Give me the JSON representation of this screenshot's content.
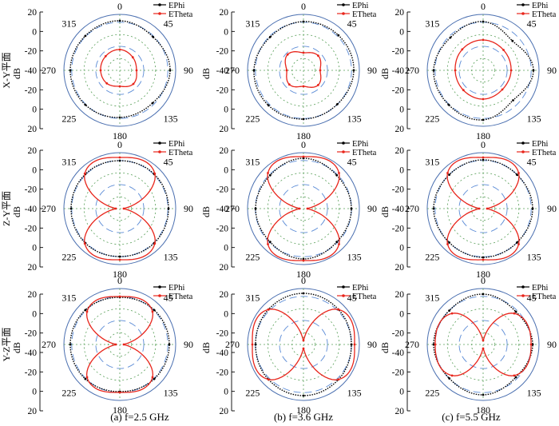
{
  "figure": {
    "captions": [
      "(a) f=2.5 GHz",
      "(b) f=3.6 GHz",
      "(c) f=5.5 GHz"
    ],
    "row_labels": [
      "X-Y平面",
      "Z-Y平面",
      "Y-Z平面"
    ]
  },
  "chart_data": [
    {
      "id": "xy-2.5",
      "type": "line",
      "polar": true,
      "plane": "X-Y平面",
      "frequency": "2.5 GHz",
      "angle_labels": [
        "0",
        "45",
        "90",
        "135",
        "180",
        "225",
        "270",
        "315"
      ],
      "r_ticks": [
        "20",
        "0",
        "-20",
        "-40",
        "-20",
        "0",
        "20"
      ],
      "rlim": [
        -50,
        20
      ],
      "ylabel": "dB",
      "legend": [
        "EPhi",
        "ETheta"
      ],
      "colors": {
        "EPhi": "#000000",
        "ETheta": "#e8251b"
      },
      "series": [
        {
          "name": "EPhi",
          "angle_deg": [
            0,
            45,
            90,
            135,
            180,
            225,
            270,
            315
          ],
          "values_db": [
            12,
            9,
            13,
            8,
            9,
            11,
            12,
            11
          ]
        },
        {
          "name": "ETheta",
          "angle_deg": [
            0,
            45,
            90,
            135,
            180,
            225,
            270,
            315
          ],
          "values_db": [
            -24,
            -27,
            -29,
            -26,
            -30,
            -27,
            -26,
            -25
          ]
        }
      ]
    },
    {
      "id": "xy-3.6",
      "type": "line",
      "polar": true,
      "plane": "X-Y平面",
      "frequency": "3.6 GHz",
      "angle_labels": [
        "0",
        "45",
        "90",
        "135",
        "180",
        "225",
        "270",
        "315"
      ],
      "r_ticks": [
        "20",
        "0",
        "-20",
        "-40",
        "-20",
        "0",
        "20"
      ],
      "rlim": [
        -50,
        20
      ],
      "ylabel": "dB",
      "legend": [
        "EPhi",
        "ETheta"
      ],
      "colors": {
        "EPhi": "#000000",
        "ETheta": "#e8251b"
      },
      "series": [
        {
          "name": "EPhi",
          "angle_deg": [
            0,
            45,
            90,
            135,
            180,
            225,
            270,
            315
          ],
          "values_db": [
            11,
            12,
            13,
            10,
            11,
            12,
            12,
            9
          ]
        },
        {
          "name": "ETheta",
          "angle_deg": [
            0,
            45,
            90,
            135,
            180,
            225,
            270,
            315
          ],
          "values_db": [
            -28,
            -24,
            -29,
            -24,
            -30,
            -25,
            -29,
            -22
          ]
        }
      ]
    },
    {
      "id": "xy-5.5",
      "type": "line",
      "polar": true,
      "plane": "X-Y平面",
      "frequency": "5.5 GHz",
      "angle_labels": [
        "0",
        "45",
        "90",
        "135",
        "180",
        "225",
        "270",
        "315"
      ],
      "r_ticks": [
        "20",
        "0",
        "-20",
        "-40",
        "-20",
        "0",
        "20"
      ],
      "rlim": [
        -50,
        20
      ],
      "ylabel": "dB",
      "legend": [
        "EPhi",
        "ETheta"
      ],
      "colors": {
        "EPhi": "#000000",
        "ETheta": "#e8251b"
      },
      "series": [
        {
          "name": "EPhi",
          "angle_deg": [
            0,
            45,
            90,
            135,
            180,
            225,
            270,
            315
          ],
          "values_db": [
            11,
            2,
            13,
            3,
            12,
            11,
            12,
            8
          ]
        },
        {
          "name": "ETheta",
          "angle_deg": [
            0,
            45,
            90,
            135,
            180,
            225,
            270,
            315
          ],
          "values_db": [
            -12,
            -14,
            -15,
            -16,
            -14,
            -15,
            -15,
            -13
          ]
        }
      ]
    },
    {
      "id": "zy-2.5",
      "type": "line",
      "polar": true,
      "plane": "Z-Y平面",
      "frequency": "2.5 GHz",
      "angle_labels": [
        "0",
        "45",
        "90",
        "135",
        "180",
        "225",
        "270",
        "315"
      ],
      "r_ticks": [
        "20",
        "0",
        "-20",
        "-40",
        "-20",
        "0",
        "20"
      ],
      "rlim": [
        -50,
        20
      ],
      "ylabel": "dB",
      "legend": [
        "EPhi",
        "ETheta"
      ],
      "colors": {
        "EPhi": "#000000",
        "ETheta": "#e8251b"
      },
      "series": [
        {
          "name": "EPhi",
          "angle_deg": [
            0,
            45,
            90,
            135,
            180,
            225,
            270,
            315
          ],
          "values_db": [
            10,
            11,
            11,
            11,
            10,
            11,
            11,
            11
          ]
        },
        {
          "name": "ETheta",
          "angle_deg": [
            0,
            45,
            90,
            135,
            180,
            225,
            270,
            315
          ],
          "values_db": [
            14,
            12,
            -45,
            12,
            14,
            12,
            -45,
            12
          ]
        }
      ]
    },
    {
      "id": "zy-3.6",
      "type": "line",
      "polar": true,
      "plane": "Z-Y平面",
      "frequency": "3.6 GHz",
      "angle_labels": [
        "0",
        "45",
        "90",
        "135",
        "180",
        "225",
        "270",
        "315"
      ],
      "r_ticks": [
        "20",
        "0",
        "-20",
        "-40",
        "-20",
        "0",
        "20"
      ],
      "rlim": [
        -50,
        20
      ],
      "ylabel": "dB",
      "legend": [
        "EPhi",
        "ETheta"
      ],
      "colors": {
        "EPhi": "#000000",
        "ETheta": "#e8251b"
      },
      "series": [
        {
          "name": "EPhi",
          "angle_deg": [
            0,
            45,
            90,
            135,
            180,
            225,
            270,
            315
          ],
          "values_db": [
            13,
            9,
            10,
            9,
            13,
            9,
            10,
            9
          ]
        },
        {
          "name": "ETheta",
          "angle_deg": [
            0,
            45,
            90,
            135,
            180,
            225,
            270,
            315
          ],
          "values_db": [
            15,
            13,
            -45,
            13,
            15,
            13,
            -45,
            13
          ]
        }
      ]
    },
    {
      "id": "zy-5.5",
      "type": "line",
      "polar": true,
      "plane": "Z-Y平面",
      "frequency": "5.5 GHz",
      "angle_labels": [
        "0",
        "45",
        "90",
        "135",
        "180",
        "225",
        "270",
        "315"
      ],
      "r_ticks": [
        "20",
        "0",
        "-20",
        "-40",
        "-20",
        "0",
        "20"
      ],
      "rlim": [
        -50,
        20
      ],
      "ylabel": "dB",
      "legend": [
        "EPhi",
        "ETheta"
      ],
      "colors": {
        "EPhi": "#000000",
        "ETheta": "#e8251b"
      },
      "series": [
        {
          "name": "EPhi",
          "angle_deg": [
            0,
            45,
            90,
            135,
            180,
            225,
            270,
            315
          ],
          "values_db": [
            11,
            10,
            12,
            10,
            11,
            10,
            12,
            10
          ]
        },
        {
          "name": "ETheta",
          "angle_deg": [
            0,
            45,
            90,
            135,
            180,
            225,
            270,
            315
          ],
          "values_db": [
            14,
            13,
            -45,
            13,
            14,
            13,
            -45,
            13
          ]
        }
      ]
    },
    {
      "id": "yz-2.5",
      "type": "line",
      "polar": true,
      "plane": "Y-Z平面",
      "frequency": "2.5 GHz",
      "angle_labels": [
        "0",
        "45",
        "90",
        "135",
        "180",
        "225",
        "270",
        "315"
      ],
      "r_ticks": [
        "20",
        "0",
        "-20",
        "-40",
        "-20",
        "0",
        "20"
      ],
      "rlim": [
        -50,
        20
      ],
      "ylabel": "dB",
      "legend": [
        "EPhi",
        "ETheta"
      ],
      "colors": {
        "EPhi": "#000000",
        "ETheta": "#e8251b"
      },
      "series": [
        {
          "name": "EPhi",
          "angle_deg": [
            0,
            45,
            90,
            135,
            180,
            225,
            270,
            315
          ],
          "values_db": [
            9,
            11,
            12,
            11,
            9,
            11,
            12,
            11
          ]
        },
        {
          "name": "ETheta",
          "angle_deg": [
            0,
            45,
            90,
            135,
            180,
            225,
            270,
            315
          ],
          "values_db": [
            10,
            8,
            -45,
            8,
            10,
            8,
            -45,
            8
          ]
        }
      ]
    },
    {
      "id": "yz-3.6",
      "type": "line",
      "polar": true,
      "plane": "Y-Z平面",
      "frequency": "3.6 GHz",
      "angle_labels": [
        "0",
        "45",
        "90",
        "135",
        "180",
        "225",
        "270",
        "315"
      ],
      "r_ticks": [
        "20",
        "0",
        "-20",
        "-40",
        "-20",
        "0",
        "20"
      ],
      "rlim": [
        -50,
        20
      ],
      "ylabel": "dB",
      "legend": [
        "EPhi",
        "ETheta"
      ],
      "colors": {
        "EPhi": "#000000",
        "ETheta": "#e8251b"
      },
      "series": [
        {
          "name": "EPhi",
          "angle_deg": [
            0,
            45,
            90,
            135,
            180,
            225,
            270,
            315
          ],
          "values_db": [
            14,
            12,
            10,
            12,
            14,
            12,
            10,
            12
          ]
        },
        {
          "name": "ETheta",
          "angle_deg": [
            0,
            45,
            90,
            135,
            180,
            225,
            270,
            315
          ],
          "values_db": [
            -45,
            12,
            14,
            12,
            -45,
            12,
            14,
            12
          ]
        }
      ]
    },
    {
      "id": "yz-5.5",
      "type": "line",
      "polar": true,
      "plane": "Y-Z平面",
      "frequency": "5.5 GHz",
      "angle_labels": [
        "0",
        "45",
        "90",
        "135",
        "180",
        "225",
        "270",
        "315"
      ],
      "r_ticks": [
        "20",
        "0",
        "-20",
        "-40",
        "-20",
        "0",
        "20"
      ],
      "rlim": [
        -50,
        20
      ],
      "ylabel": "dB",
      "legend": [
        "EPhi",
        "ETheta"
      ],
      "colors": {
        "EPhi": "#000000",
        "ETheta": "#e8251b"
      },
      "series": [
        {
          "name": "EPhi",
          "angle_deg": [
            0,
            45,
            90,
            135,
            180,
            225,
            270,
            315
          ],
          "values_db": [
            13,
            8,
            12,
            8,
            13,
            10,
            12,
            10
          ]
        },
        {
          "name": "ETheta",
          "angle_deg": [
            0,
            45,
            90,
            135,
            180,
            225,
            270,
            315
          ],
          "values_db": [
            -45,
            5,
            10,
            5,
            -45,
            5,
            10,
            5
          ]
        }
      ]
    }
  ]
}
